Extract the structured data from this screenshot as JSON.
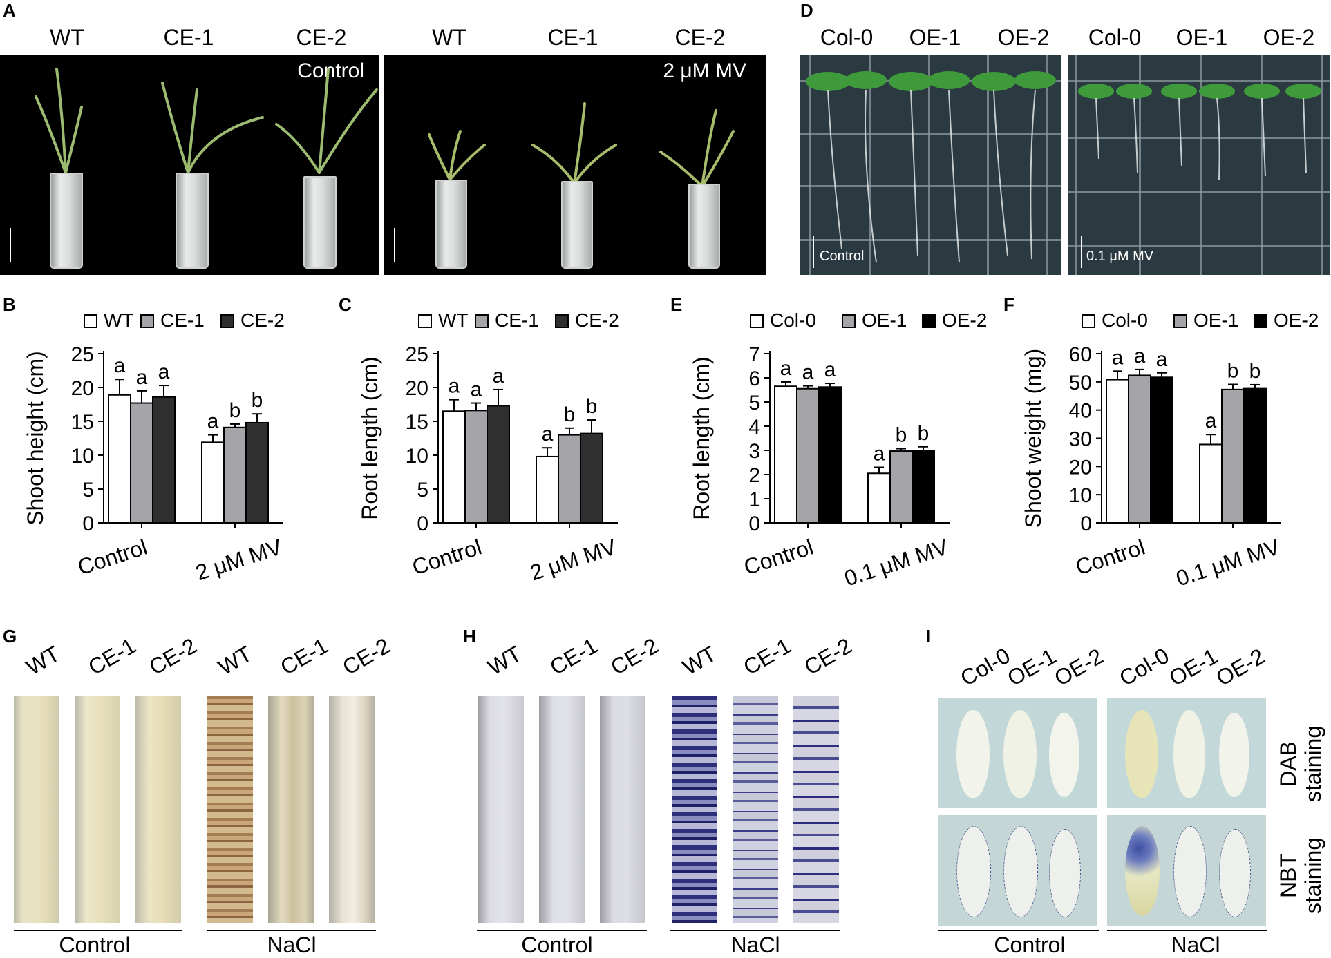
{
  "panel_letters": {
    "A": "A",
    "B": "B",
    "C": "C",
    "D": "D",
    "E": "E",
    "F": "F",
    "G": "G",
    "H": "H",
    "I": "I"
  },
  "panelA": {
    "left_titles": [
      "WT",
      "CE-1",
      "CE-2"
    ],
    "right_titles": [
      "WT",
      "CE-1",
      "CE-2"
    ],
    "left_condition": "Control",
    "right_condition": "2 μM MV"
  },
  "panelD": {
    "left_titles": [
      "Col-0",
      "OE-1",
      "OE-2"
    ],
    "right_titles": [
      "Col-0",
      "OE-1",
      "OE-2"
    ],
    "left_condition": "Control",
    "right_condition": "0.1 μM MV"
  },
  "panelG": {
    "strip_labels": [
      "WT",
      "CE-1",
      "CE-2",
      "WT",
      "CE-1",
      "CE-2"
    ],
    "group_labels": [
      "Control",
      "NaCl"
    ]
  },
  "panelH": {
    "strip_labels": [
      "WT",
      "CE-1",
      "CE-2",
      "WT",
      "CE-1",
      "CE-2"
    ],
    "group_labels": [
      "Control",
      "NaCl"
    ]
  },
  "panelI": {
    "col_labels": [
      "Col-0",
      "OE-1",
      "OE-2",
      "Col-0",
      "OE-1",
      "OE-2"
    ],
    "row_labels": [
      [
        "DAB",
        "staining"
      ],
      [
        "NBT",
        "staining"
      ]
    ],
    "group_labels": [
      "Control",
      "NaCl"
    ]
  },
  "colors": {
    "white_bar": "#ffffff",
    "gray_bar": "#a5a5a9",
    "dark_bar": "#2f2f2f",
    "black_bar": "#000000"
  },
  "chart_data": [
    {
      "panel": "B",
      "type": "bar",
      "ylabel": "Shoot height (cm)",
      "xlabel": "",
      "ylim": [
        0,
        25
      ],
      "yticks": [
        0,
        5,
        10,
        15,
        20,
        25
      ],
      "categories": [
        "Control",
        "2 μM MV"
      ],
      "series": [
        {
          "name": "WT",
          "color": "#ffffff",
          "values": [
            18.9,
            11.9
          ],
          "errors": [
            2.3,
            1.1
          ],
          "letters": [
            "a",
            "a"
          ]
        },
        {
          "name": "CE-1",
          "color": "#a5a5a9",
          "values": [
            17.7,
            14.1
          ],
          "errors": [
            1.8,
            0.5
          ],
          "letters": [
            "a",
            "b"
          ]
        },
        {
          "name": "CE-2",
          "color": "#2f2f2f",
          "values": [
            18.6,
            14.8
          ],
          "errors": [
            1.7,
            1.3
          ],
          "letters": [
            "a",
            "b"
          ]
        }
      ]
    },
    {
      "panel": "C",
      "type": "bar",
      "ylabel": "Root length (cm)",
      "xlabel": "",
      "ylim": [
        0,
        25
      ],
      "yticks": [
        0,
        5,
        10,
        15,
        20,
        25
      ],
      "categories": [
        "Control",
        "2 μM MV"
      ],
      "series": [
        {
          "name": "WT",
          "color": "#ffffff",
          "values": [
            16.5,
            9.8
          ],
          "errors": [
            1.7,
            1.3
          ],
          "letters": [
            "a",
            "a"
          ]
        },
        {
          "name": "CE-1",
          "color": "#a5a5a9",
          "values": [
            16.6,
            13.0
          ],
          "errors": [
            1.1,
            1.0
          ],
          "letters": [
            "a",
            "b"
          ]
        },
        {
          "name": "CE-2",
          "color": "#2f2f2f",
          "values": [
            17.3,
            13.2
          ],
          "errors": [
            2.4,
            2.0
          ],
          "letters": [
            "a",
            "b"
          ]
        }
      ]
    },
    {
      "panel": "E",
      "type": "bar",
      "ylabel": "Root length (cm)",
      "xlabel": "",
      "ylim": [
        0,
        7
      ],
      "yticks": [
        0,
        1,
        2,
        3,
        4,
        5,
        6,
        7
      ],
      "categories": [
        "Control",
        "0.1 μM MV"
      ],
      "series": [
        {
          "name": "Col-0",
          "color": "#ffffff",
          "values": [
            5.65,
            2.05
          ],
          "errors": [
            0.18,
            0.25
          ],
          "letters": [
            "a",
            "a"
          ]
        },
        {
          "name": "OE-1",
          "color": "#a5a5a9",
          "values": [
            5.55,
            2.97
          ],
          "errors": [
            0.12,
            0.1
          ],
          "letters": [
            "a",
            "b"
          ]
        },
        {
          "name": "OE-2",
          "color": "#000000",
          "values": [
            5.62,
            3.0
          ],
          "errors": [
            0.15,
            0.15
          ],
          "letters": [
            "a",
            "b"
          ]
        }
      ]
    },
    {
      "panel": "F",
      "type": "bar",
      "ylabel": "Shoot weight (mg)",
      "xlabel": "",
      "ylim": [
        0,
        60
      ],
      "yticks": [
        0,
        10,
        20,
        30,
        40,
        50,
        60
      ],
      "categories": [
        "Control",
        "0.1 μM MV"
      ],
      "series": [
        {
          "name": "Col-0",
          "color": "#ffffff",
          "values": [
            50.8,
            27.8
          ],
          "errors": [
            3.0,
            3.5
          ],
          "letters": [
            "a",
            "a"
          ]
        },
        {
          "name": "OE-1",
          "color": "#a5a5a9",
          "values": [
            52.3,
            47.3
          ],
          "errors": [
            2.1,
            1.8
          ],
          "letters": [
            "a",
            "b"
          ]
        },
        {
          "name": "OE-2",
          "color": "#000000",
          "values": [
            51.6,
            47.6
          ],
          "errors": [
            1.6,
            1.4
          ],
          "letters": [
            "a",
            "b"
          ]
        }
      ]
    }
  ]
}
